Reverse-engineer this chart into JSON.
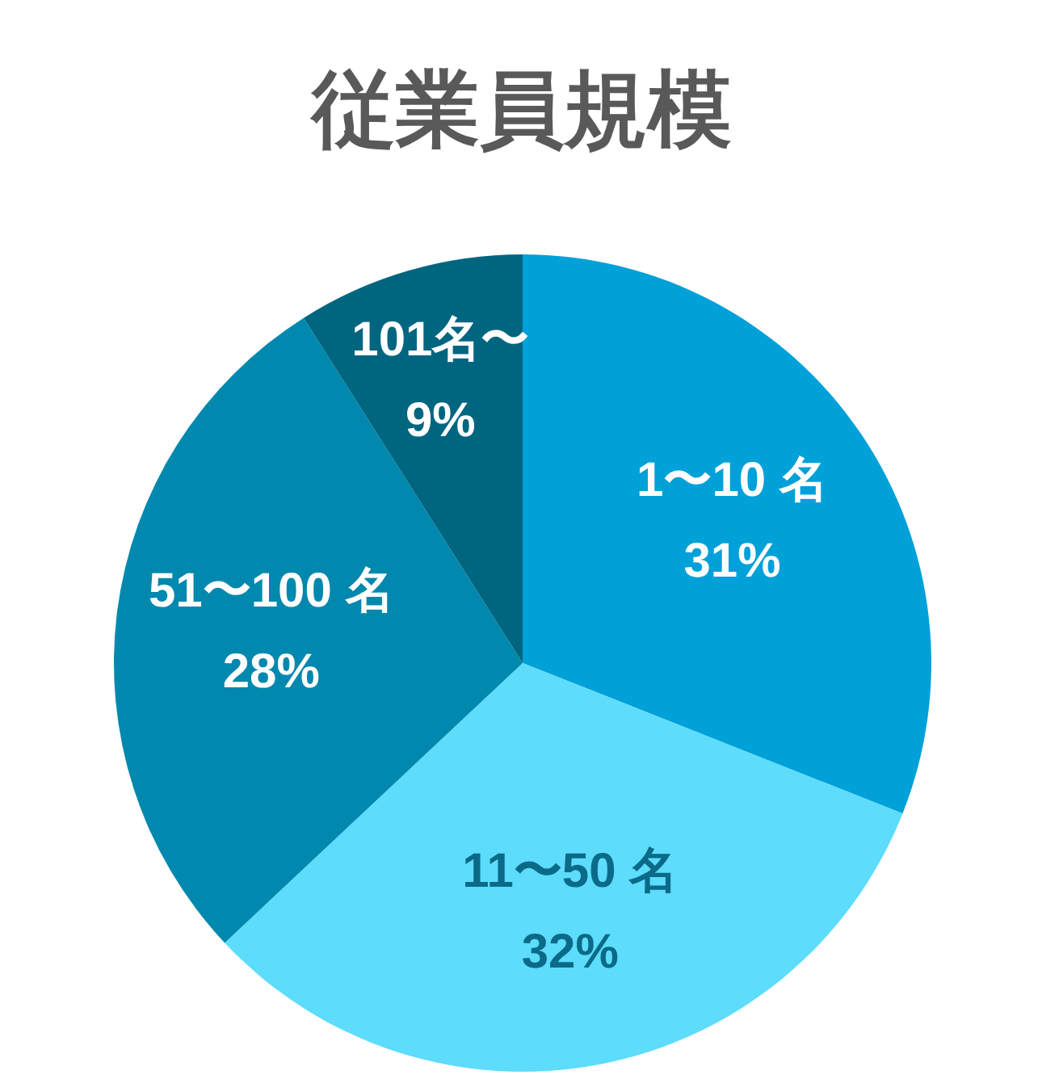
{
  "chart_data": {
    "type": "pie",
    "title": "従業員規模",
    "categories": [
      "1〜10 名",
      "11〜50 名",
      "51〜100 名",
      "101名〜"
    ],
    "values": [
      31,
      32,
      28,
      9
    ],
    "colors": [
      "#00a0d8",
      "#5ddcfc",
      "#0088ae",
      "#006680"
    ],
    "value_labels": [
      "31%",
      "32%",
      "28%",
      "9%"
    ]
  }
}
